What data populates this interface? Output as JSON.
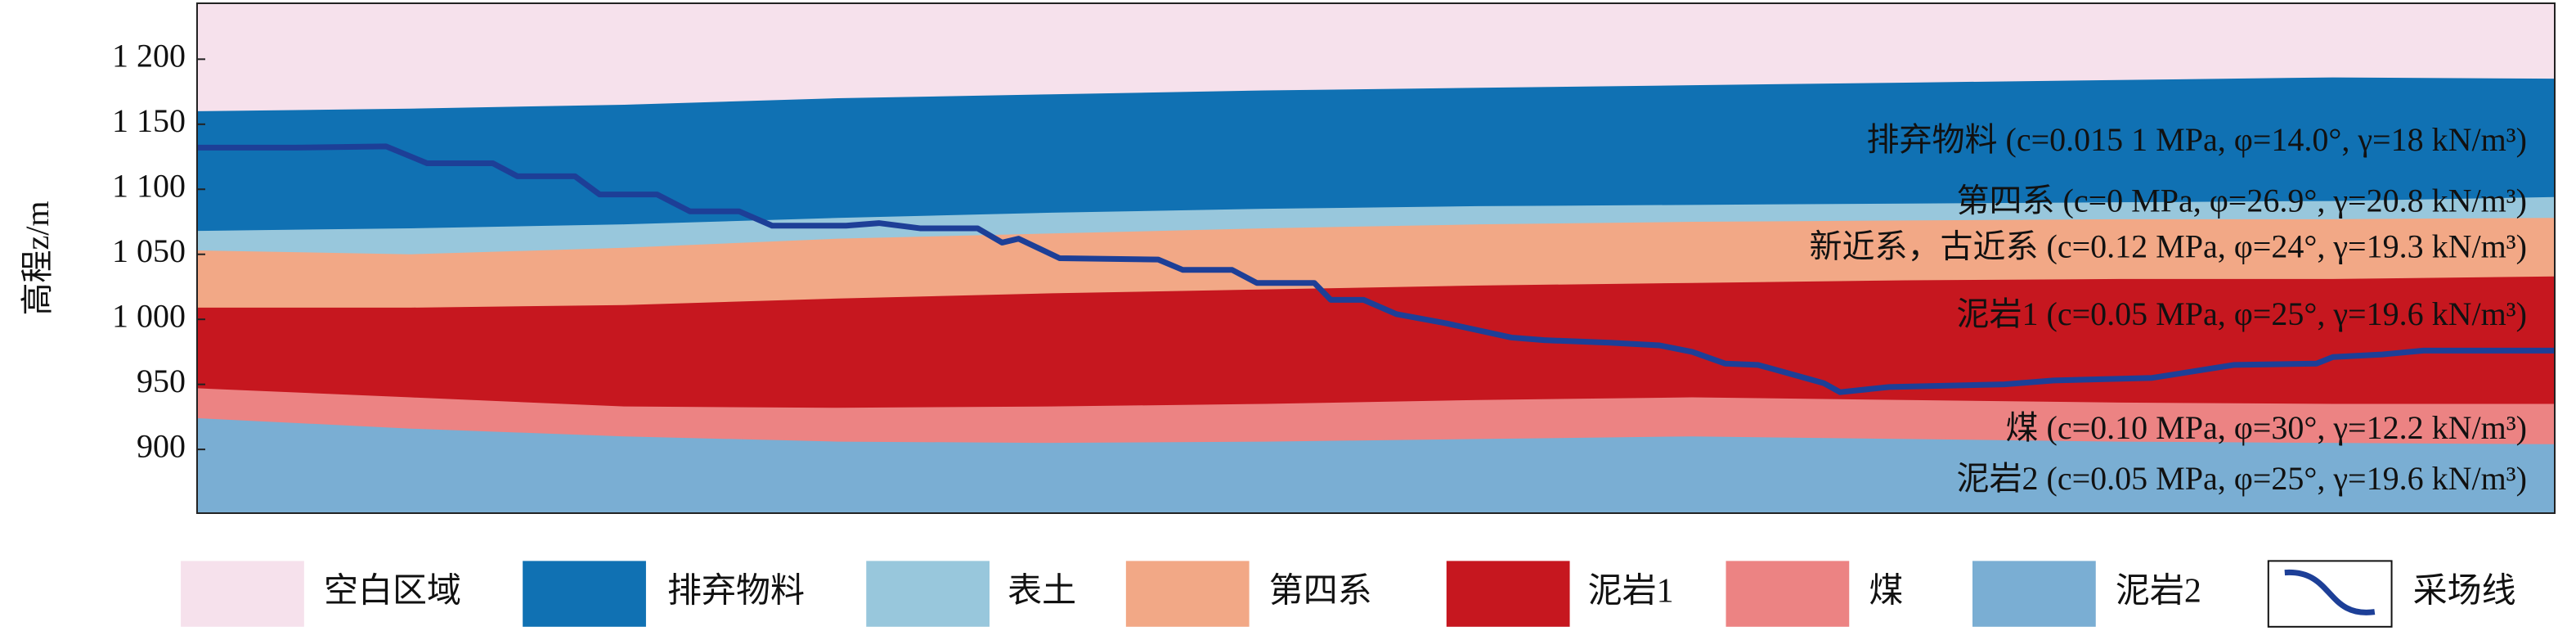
{
  "chart_data": {
    "type": "area",
    "y_label": "高程z/m",
    "background": {
      "name": "空白区域",
      "color": "#f6e1ec"
    },
    "x": [
      0,
      130,
      260,
      390,
      520,
      650,
      780,
      910,
      1040,
      1170,
      1300,
      1435
    ],
    "xlim": [
      0,
      1435
    ],
    "ylim": [
      851,
      1243
    ],
    "yticks": [
      {
        "value": 900,
        "label": "900"
      },
      {
        "value": 950,
        "label": "950"
      },
      {
        "value": 1000,
        "label": "1 000"
      },
      {
        "value": 1050,
        "label": "1 050"
      },
      {
        "value": 1100,
        "label": "1 100"
      },
      {
        "value": 1150,
        "label": "1 150"
      },
      {
        "value": 1200,
        "label": "1 200"
      }
    ],
    "series": [
      {
        "name": "排弃物料",
        "color": "#1071b3",
        "values": [
          1160,
          1162,
          1165,
          1170,
          1173,
          1176,
          1178,
          1180,
          1182,
          1184,
          1186,
          1185
        ]
      },
      {
        "name": "表土",
        "color": "#98c7dc",
        "values": [
          1068,
          1070,
          1073,
          1078,
          1082,
          1085,
          1087,
          1088,
          1089,
          1090,
          1091,
          1094
        ]
      },
      {
        "name": "第四系",
        "color": "#f2a886",
        "values": [
          1053,
          1050,
          1055,
          1062,
          1066,
          1070,
          1073,
          1075,
          1076,
          1077,
          1077,
          1078
        ]
      },
      {
        "name": "泥岩1",
        "color": "#c6171f",
        "values": [
          1009,
          1009,
          1011,
          1016,
          1020,
          1023,
          1026,
          1028,
          1030,
          1031,
          1031,
          1033
        ]
      },
      {
        "name": "煤",
        "color": "#ec8383",
        "values": [
          947,
          940,
          933,
          932,
          933,
          935,
          938,
          940,
          938,
          936,
          935,
          935
        ]
      },
      {
        "name": "泥岩2",
        "color": "#7aaed3",
        "values": [
          924,
          916,
          910,
          906,
          905,
          906,
          908,
          910,
          908,
          906,
          905,
          904
        ]
      }
    ],
    "line": {
      "name": "采场线",
      "color": "#1d3f97",
      "x": [
        0,
        60,
        115,
        140,
        180,
        195,
        230,
        245,
        280,
        300,
        330,
        350,
        395,
        415,
        440,
        475,
        490,
        500,
        525,
        585,
        600,
        630,
        645,
        680,
        690,
        710,
        730,
        760,
        800,
        820,
        860,
        890,
        910,
        930,
        950,
        990,
        1000,
        1030,
        1100,
        1130,
        1190,
        1225,
        1240,
        1290,
        1300,
        1330,
        1355,
        1435
      ],
      "values": [
        1132,
        1132,
        1133,
        1120,
        1120,
        1110,
        1110,
        1096,
        1096,
        1083,
        1083,
        1072,
        1072,
        1074,
        1070,
        1070,
        1059,
        1062,
        1047,
        1046,
        1038,
        1038,
        1028,
        1028,
        1015,
        1015,
        1004,
        997,
        986,
        984,
        982,
        980,
        975,
        966,
        965,
        951,
        944,
        948,
        950,
        953,
        955,
        962,
        965,
        966,
        971,
        973,
        976,
        976
      ]
    },
    "annotations": [
      "排弃物料 (c=0.015 1 MPa, φ=14.0°, γ=18 kN/m³)",
      "第四系 (c=0 MPa, φ=26.9°, γ=20.8 kN/m³)",
      "新近系，古近系 (c=0.12 MPa, φ=24°, γ=19.3 kN/m³)",
      "泥岩1 (c=0.05 MPa, φ=25°, γ=19.6 kN/m³)",
      "煤 (c=0.10 MPa, φ=30°, γ=12.2 kN/m³)",
      "泥岩2 (c=0.05 MPa, φ=25°, γ=19.6 kN/m³)"
    ]
  }
}
